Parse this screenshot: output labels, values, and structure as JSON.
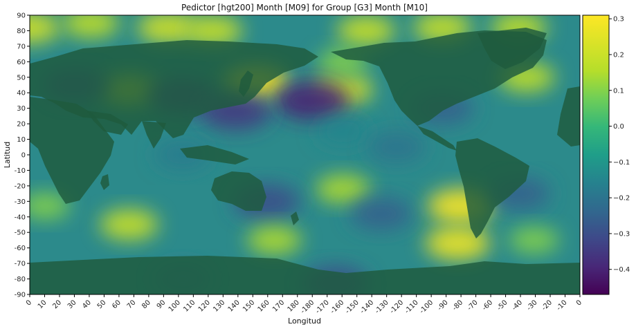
{
  "chart_data": {
    "type": "heatmap",
    "title": "Pedictor [hgt200] Month [M09] for Group [G3] Month [M10]",
    "xlabel": "Longitud",
    "ylabel": "Latitud",
    "x_tick_labels": [
      "0",
      "10",
      "20",
      "30",
      "40",
      "50",
      "60",
      "70",
      "80",
      "90",
      "100",
      "110",
      "120",
      "130",
      "140",
      "150",
      "160",
      "170",
      "180",
      "-180",
      "-170",
      "-160",
      "-150",
      "-140",
      "-130",
      "-120",
      "-110",
      "-100",
      "-90",
      "-80",
      "-70",
      "-60",
      "-50",
      "-40",
      "-30",
      "-20",
      "-10",
      "0"
    ],
    "y_tick_labels": [
      "90",
      "80",
      "70",
      "60",
      "50",
      "40",
      "30",
      "20",
      "10",
      "0",
      "-10",
      "-20",
      "-30",
      "-40",
      "-50",
      "-60",
      "-70",
      "-80",
      "-90"
    ],
    "xlim": [
      0,
      360
    ],
    "ylim": [
      -90,
      90
    ],
    "colormap": "viridis",
    "colorbar": {
      "range": [
        -0.47,
        0.31
      ],
      "ticks": [
        0.3,
        0.2,
        0.1,
        0.0,
        -0.1,
        -0.2,
        -0.3,
        -0.4
      ],
      "tick_labels": [
        "0.3",
        "0.2",
        "0.1",
        "0.0",
        "−0.1",
        "−0.2",
        "−0.3",
        "−0.4"
      ]
    },
    "land_mask": "dark green overlay",
    "features": [
      {
        "lon": 0,
        "lat": 82,
        "value": 0.22
      },
      {
        "lon": 40,
        "lat": 85,
        "value": 0.18
      },
      {
        "lon": 90,
        "lat": 82,
        "value": 0.22
      },
      {
        "lon": 120,
        "lat": 80,
        "value": 0.2
      },
      {
        "lon": 220,
        "lat": 80,
        "value": 0.2
      },
      {
        "lon": 270,
        "lat": 82,
        "value": 0.2
      },
      {
        "lon": 320,
        "lat": 82,
        "value": 0.18
      },
      {
        "lon": 148,
        "lat": 47,
        "value": 0.3
      },
      {
        "lon": 65,
        "lat": 42,
        "value": 0.22
      },
      {
        "lon": 205,
        "lat": 42,
        "value": 0.22
      },
      {
        "lon": 325,
        "lat": 50,
        "value": 0.18
      },
      {
        "lon": 205,
        "lat": 60,
        "value": 0.1
      },
      {
        "lon": 100,
        "lat": 38,
        "value": -0.33
      },
      {
        "lon": 30,
        "lat": 45,
        "value": -0.3
      },
      {
        "lon": 185,
        "lat": 35,
        "value": -0.4
      },
      {
        "lon": 135,
        "lat": 28,
        "value": -0.35
      },
      {
        "lon": 270,
        "lat": 30,
        "value": -0.25
      },
      {
        "lon": 205,
        "lat": 15,
        "value": -0.15
      },
      {
        "lon": 100,
        "lat": 0,
        "value": -0.18
      },
      {
        "lon": 240,
        "lat": 5,
        "value": -0.2
      },
      {
        "lon": 205,
        "lat": -22,
        "value": 0.15
      },
      {
        "lon": 155,
        "lat": -30,
        "value": -0.3
      },
      {
        "lon": 230,
        "lat": -38,
        "value": -0.25
      },
      {
        "lon": 65,
        "lat": -45,
        "value": 0.2
      },
      {
        "lon": 10,
        "lat": -33,
        "value": 0.1
      },
      {
        "lon": 160,
        "lat": -55,
        "value": 0.15
      },
      {
        "lon": 282,
        "lat": -33,
        "value": 0.3
      },
      {
        "lon": 280,
        "lat": -57,
        "value": 0.28
      },
      {
        "lon": 320,
        "lat": -25,
        "value": -0.25
      },
      {
        "lon": 330,
        "lat": -55,
        "value": 0.1
      },
      {
        "lon": 100,
        "lat": -80,
        "value": -0.2
      },
      {
        "lon": 200,
        "lat": -83,
        "value": -0.3
      }
    ]
  }
}
